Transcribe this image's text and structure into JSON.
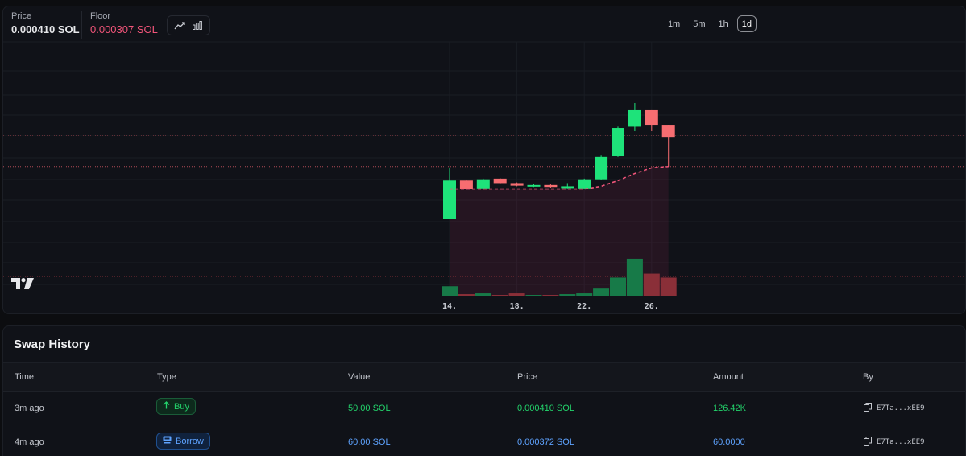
{
  "header": {
    "price_label": "Price",
    "price_value": "0.000410 SOL",
    "floor_label": "Floor",
    "floor_value": "0.000307 SOL",
    "floor_color": "#f2557a",
    "chart_type_icons": [
      "line-chart-icon",
      "bar-chart-icon"
    ]
  },
  "timeframes": [
    {
      "label": "1m",
      "active": false
    },
    {
      "label": "5m",
      "active": false
    },
    {
      "label": "1h",
      "active": false
    },
    {
      "label": "1d",
      "active": true
    }
  ],
  "chart_data": {
    "type": "candlestick",
    "x_ticks": [
      "14.",
      "18.",
      "22.",
      "26."
    ],
    "candles": [
      {
        "day": 14,
        "open": 0.000225,
        "close": 0.000285,
        "high": 0.000305,
        "low": 0.000225
      },
      {
        "day": 15,
        "open": 0.000285,
        "close": 0.000272,
        "high": 0.000286,
        "low": 0.000271
      },
      {
        "day": 16,
        "open": 0.000273,
        "close": 0.000287,
        "high": 0.000288,
        "low": 0.000272
      },
      {
        "day": 17,
        "open": 0.000288,
        "close": 0.000281,
        "high": 0.000289,
        "low": 0.00028
      },
      {
        "day": 18,
        "open": 0.000281,
        "close": 0.000277,
        "high": 0.000282,
        "low": 0.000276
      },
      {
        "day": 19,
        "open": 0.000276,
        "close": 0.000278,
        "high": 0.000279,
        "low": 0.000275
      },
      {
        "day": 20,
        "open": 0.000278,
        "close": 0.000275,
        "high": 0.000279,
        "low": 0.000274
      },
      {
        "day": 21,
        "open": 0.000274,
        "close": 0.000276,
        "high": 0.000281,
        "low": 0.000273
      },
      {
        "day": 22,
        "open": 0.000273,
        "close": 0.000287,
        "high": 0.000288,
        "low": 0.000272
      },
      {
        "day": 23,
        "open": 0.000287,
        "close": 0.000322,
        "high": 0.000324,
        "low": 0.000286
      },
      {
        "day": 24,
        "open": 0.000323,
        "close": 0.000367,
        "high": 0.000369,
        "low": 0.000322
      },
      {
        "day": 25,
        "open": 0.000369,
        "close": 0.000396,
        "high": 0.000406,
        "low": 0.000362
      },
      {
        "day": 26,
        "open": 0.000396,
        "close": 0.000372,
        "high": 0.000396,
        "low": 0.000363
      },
      {
        "day": 27,
        "open": 0.000372,
        "close": 0.000353,
        "high": 0.000372,
        "low": 0.000307
      }
    ],
    "floor_series": {
      "days": [
        14,
        15,
        16,
        17,
        18,
        19,
        20,
        21,
        22,
        23,
        24,
        25,
        26,
        27
      ],
      "values": [
        0.000272,
        0.000272,
        0.000272,
        0.000272,
        0.000272,
        0.000272,
        0.000272,
        0.000272,
        0.000272,
        0.000276,
        0.000285,
        0.000296,
        0.000305,
        0.000307
      ],
      "color": "#f2557a"
    },
    "volume": [
      {
        "day": 14,
        "value": 12,
        "up": true
      },
      {
        "day": 15,
        "value": 2,
        "up": false
      },
      {
        "day": 16,
        "value": 3,
        "up": true
      },
      {
        "day": 17,
        "value": 1,
        "up": false
      },
      {
        "day": 18,
        "value": 3,
        "up": false
      },
      {
        "day": 19,
        "value": 1,
        "up": true
      },
      {
        "day": 20,
        "value": 1,
        "up": false
      },
      {
        "day": 21,
        "value": 2,
        "up": true
      },
      {
        "day": 22,
        "value": 3,
        "up": true
      },
      {
        "day": 23,
        "value": 9,
        "up": true
      },
      {
        "day": 24,
        "value": 23,
        "up": true
      },
      {
        "day": 25,
        "value": 47,
        "up": true
      },
      {
        "day": 26,
        "value": 28,
        "up": false
      },
      {
        "day": 27,
        "value": 23,
        "up": false
      }
    ],
    "price_line": 0.00041,
    "floor_line": 0.000307,
    "up_color": "#1ee37a",
    "down_color": "#f76d71"
  },
  "swap_history": {
    "title": "Swap History",
    "columns": [
      "Time",
      "Type",
      "Value",
      "Price",
      "Amount",
      "By"
    ],
    "rows": [
      {
        "time": "3m ago",
        "type": "Buy",
        "type_icon": "arrow-up-icon",
        "value": "50.00 SOL",
        "price": "0.000410 SOL",
        "amount": "126.42K",
        "by": "E7Ta...xEE9",
        "color": "#23d36b"
      },
      {
        "time": "4m ago",
        "type": "Borrow",
        "type_icon": "borrow-icon",
        "value": "60.00 SOL",
        "price": "0.000372 SOL",
        "amount": "60.0000",
        "by": "E7Ta...xEE9",
        "color": "#5ea3ff"
      }
    ]
  }
}
